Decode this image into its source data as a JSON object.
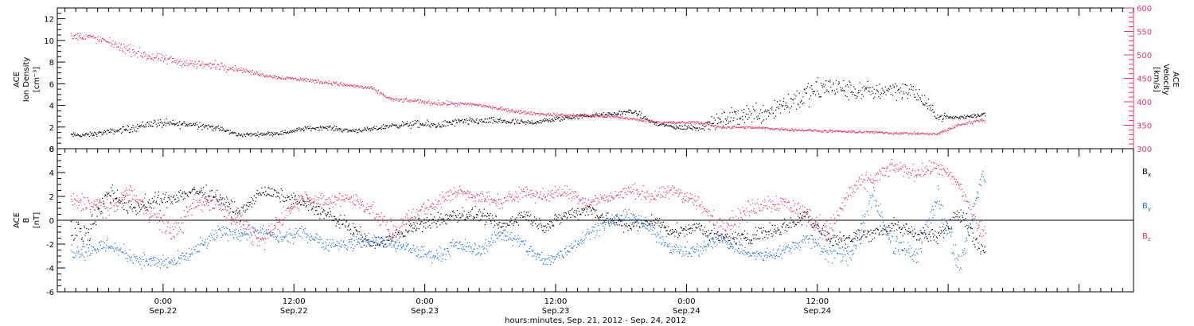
{
  "chart_data": [
    {
      "type": "scatter",
      "panel": "top",
      "ylabel_left": [
        "ACE",
        "Ion Density",
        "[cm⁻³]"
      ],
      "ylabel_right": [
        "ACE",
        "Velocity",
        "[km/s]"
      ],
      "ylim_left": [
        0,
        13
      ],
      "ylim_right": [
        300,
        600
      ],
      "yticks_left": [
        "0",
        "2",
        "4",
        "6",
        "8",
        "10",
        "12"
      ],
      "yticks_right": [
        "300",
        "350",
        "400",
        "450",
        "500",
        "550",
        "600"
      ],
      "colors": {
        "density": "#000000",
        "velocity": "#e8336b"
      },
      "series": [
        {
          "name": "Ion Density",
          "axis": "left",
          "x_hours": [
            -7,
            -5,
            -3,
            -1,
            1,
            3,
            5,
            7,
            9,
            11,
            13,
            15,
            17,
            19,
            21,
            23,
            25,
            27,
            29,
            31,
            33,
            35,
            37,
            39,
            41,
            43,
            45,
            47,
            49,
            51,
            53,
            55,
            57,
            59,
            61,
            63,
            65,
            67,
            69,
            71,
            73,
            75
          ],
          "values": [
            1.3,
            1.6,
            1.9,
            2.4,
            2.3,
            2.3,
            1.9,
            1.3,
            1.4,
            1.5,
            1.9,
            2.0,
            1.7,
            1.8,
            2.2,
            2.3,
            2.2,
            2.5,
            2.6,
            2.6,
            2.4,
            2.6,
            2.9,
            3.1,
            3.2,
            3.5,
            2.4,
            2.0,
            2.0,
            2.6,
            3.2,
            3.4,
            4.2,
            5.0,
            5.8,
            5.4,
            5.3,
            5.6,
            5.2,
            3.0,
            2.9,
            3.2
          ],
          "spread": [
            0.3,
            0.35,
            0.5,
            0.6,
            0.5,
            0.5,
            0.4,
            0.25,
            0.25,
            0.3,
            0.3,
            0.3,
            0.3,
            0.3,
            0.35,
            0.5,
            0.5,
            0.5,
            0.45,
            0.45,
            0.4,
            0.35,
            0.35,
            0.3,
            0.3,
            0.35,
            0.4,
            0.3,
            0.5,
            1.0,
            1.4,
            1.5,
            1.7,
            1.6,
            1.6,
            1.3,
            1.2,
            1.3,
            1.3,
            0.5,
            0.3,
            0.3
          ]
        },
        {
          "name": "Velocity",
          "axis": "right",
          "x_hours": [
            -7,
            -5,
            -3,
            -1,
            1,
            3,
            5,
            7,
            9,
            11,
            13,
            15,
            17,
            19,
            21,
            23,
            25,
            27,
            29,
            31,
            33,
            35,
            37,
            39,
            41,
            43,
            45,
            47,
            49,
            51,
            53,
            55,
            57,
            59,
            61,
            63,
            65,
            67,
            69,
            71,
            73,
            75
          ],
          "values": [
            540,
            528,
            510,
            495,
            488,
            480,
            478,
            470,
            458,
            452,
            448,
            442,
            436,
            430,
            405,
            403,
            398,
            396,
            394,
            385,
            378,
            374,
            372,
            370,
            370,
            364,
            358,
            356,
            357,
            347,
            346,
            345,
            342,
            340,
            338,
            337,
            336,
            334,
            333,
            332,
            352,
            362
          ],
          "spread": [
            12,
            12,
            16,
            14,
            14,
            14,
            14,
            8,
            6,
            6,
            6,
            6,
            6,
            6,
            6,
            6,
            8,
            6,
            6,
            6,
            5,
            5,
            5,
            5,
            5,
            5,
            5,
            5,
            5,
            5,
            4,
            4,
            4,
            4,
            4,
            4,
            4,
            4,
            4,
            4,
            6,
            6
          ]
        }
      ]
    },
    {
      "type": "scatter",
      "panel": "bottom",
      "ylabel_left": [
        "ACE",
        "B",
        "[nT]"
      ],
      "ylim": [
        -6,
        6
      ],
      "yticks": [
        "-6",
        "-4",
        "-2",
        "0",
        "2",
        "4",
        "6"
      ],
      "zero_line": true,
      "series": [
        {
          "name": "Bx",
          "label_main": "B",
          "label_sub": "x",
          "color": "#000000",
          "x_hours": [
            -7,
            -5,
            -3,
            -1,
            1,
            3,
            5,
            7,
            9,
            11,
            13,
            15,
            17,
            19,
            21,
            23,
            25,
            27,
            29,
            31,
            33,
            35,
            37,
            39,
            41,
            43,
            45,
            47,
            49,
            51,
            53,
            55,
            57,
            59,
            61,
            63,
            65,
            67,
            69,
            71,
            73,
            75
          ],
          "values": [
            -1.0,
            2.5,
            1.0,
            1.5,
            2.0,
            2.5,
            2.0,
            0.5,
            2.5,
            2.0,
            1.5,
            0.5,
            -0.5,
            -2.0,
            -1.5,
            -0.5,
            0.0,
            0.5,
            0.5,
            -0.5,
            0.5,
            -0.5,
            0.5,
            1.0,
            0.0,
            -0.5,
            0.0,
            -1.0,
            -0.5,
            -1.5,
            -1.5,
            -1.0,
            -0.5,
            0.5,
            -1.5,
            -1.5,
            -1.0,
            -0.5,
            -1.0,
            -1.5,
            1.0,
            -2.5
          ],
          "spread": [
            1.5,
            1.2,
            1.0,
            1.0,
            0.9,
            0.8,
            0.8,
            1.0,
            0.7,
            0.8,
            0.8,
            0.9,
            0.9,
            0.8,
            0.9,
            0.9,
            0.9,
            0.9,
            0.8,
            0.8,
            0.9,
            0.8,
            0.8,
            0.8,
            0.9,
            0.9,
            0.8,
            0.8,
            0.8,
            0.9,
            0.9,
            0.9,
            0.9,
            0.9,
            0.9,
            0.9,
            0.9,
            0.9,
            0.9,
            0.9,
            1.2,
            1.0
          ]
        },
        {
          "name": "By",
          "label_main": "B",
          "label_sub": "y",
          "color": "#1a73d9",
          "x_hours": [
            -7,
            -5,
            -3,
            -1,
            1,
            3,
            5,
            7,
            9,
            11,
            13,
            15,
            17,
            19,
            21,
            23,
            25,
            27,
            29,
            31,
            33,
            35,
            37,
            39,
            41,
            43,
            45,
            47,
            49,
            51,
            53,
            55,
            57,
            59,
            61,
            63,
            65,
            67,
            69,
            71,
            73,
            75
          ],
          "values": [
            -2.5,
            -2.0,
            -3.0,
            -3.5,
            -3.5,
            -2.5,
            -1.0,
            -1.0,
            -1.0,
            -1.5,
            -1.0,
            -2.0,
            -2.0,
            -1.5,
            -2.0,
            -2.5,
            -3.0,
            -2.0,
            -2.5,
            -1.0,
            -2.0,
            -3.5,
            -2.5,
            -1.0,
            0.0,
            0.5,
            -1.0,
            -2.5,
            -2.5,
            -1.5,
            -2.5,
            -3.0,
            -2.5,
            -1.5,
            -2.5,
            -3.0,
            2.0,
            -2.0,
            -3.0,
            2.0,
            -4.0,
            3.5
          ],
          "spread": [
            1.0,
            0.9,
            0.9,
            0.9,
            0.9,
            0.9,
            0.9,
            0.9,
            0.8,
            0.8,
            0.8,
            0.8,
            0.8,
            0.8,
            0.8,
            0.9,
            0.9,
            0.8,
            0.8,
            0.9,
            0.9,
            0.9,
            0.9,
            0.8,
            0.8,
            0.8,
            0.8,
            0.8,
            0.8,
            0.8,
            0.8,
            0.8,
            0.8,
            0.9,
            1.2,
            1.2,
            1.4,
            1.3,
            1.3,
            1.5,
            1.4,
            1.0
          ]
        },
        {
          "name": "Bz",
          "label_main": "B",
          "label_sub": "z",
          "color": "#e8336b",
          "x_hours": [
            -7,
            -5,
            -3,
            -1,
            1,
            3,
            5,
            7,
            9,
            11,
            13,
            15,
            17,
            19,
            21,
            23,
            25,
            27,
            29,
            31,
            33,
            35,
            37,
            39,
            41,
            43,
            45,
            47,
            49,
            51,
            53,
            55,
            57,
            59,
            61,
            63,
            65,
            67,
            69,
            71,
            73,
            75
          ],
          "values": [
            1.5,
            1.0,
            2.5,
            0.5,
            -1.0,
            1.5,
            1.5,
            0.0,
            -2.0,
            0.5,
            2.0,
            1.5,
            2.0,
            1.0,
            -1.0,
            0.5,
            1.5,
            2.5,
            2.0,
            1.5,
            2.5,
            2.0,
            2.5,
            1.5,
            2.0,
            2.5,
            2.0,
            2.5,
            1.5,
            -0.5,
            0.5,
            1.5,
            1.5,
            0.5,
            -1.0,
            2.5,
            3.5,
            4.5,
            4.0,
            4.5,
            3.0,
            -1.0
          ],
          "spread": [
            1.2,
            1.1,
            1.0,
            1.2,
            1.3,
            1.2,
            1.2,
            1.2,
            1.2,
            1.0,
            0.8,
            0.9,
            0.9,
            1.0,
            1.2,
            1.1,
            1.0,
            0.8,
            0.8,
            0.9,
            0.8,
            0.8,
            0.8,
            0.9,
            0.8,
            0.8,
            0.9,
            0.8,
            1.0,
            1.2,
            1.2,
            1.1,
            1.1,
            1.2,
            1.3,
            1.2,
            1.0,
            0.8,
            0.9,
            0.8,
            1.0,
            1.2
          ]
        }
      ]
    }
  ],
  "x_axis": {
    "range_hours": [
      -9.7,
      89
    ],
    "data_end_hours": 75.4,
    "major_ticks_hours": [
      0,
      12,
      24,
      36,
      48,
      60
    ],
    "tick_time_labels": [
      "0:00",
      "12:00",
      "0:00",
      "12:00",
      "0:00",
      "12:00"
    ],
    "tick_date_labels": [
      "Sep.22",
      "Sep.22",
      "Sep.23",
      "Sep.23",
      "Sep.24",
      "Sep.24"
    ],
    "title": "hours:minutes, Sep. 21, 2012 - Sep. 24, 2012"
  }
}
